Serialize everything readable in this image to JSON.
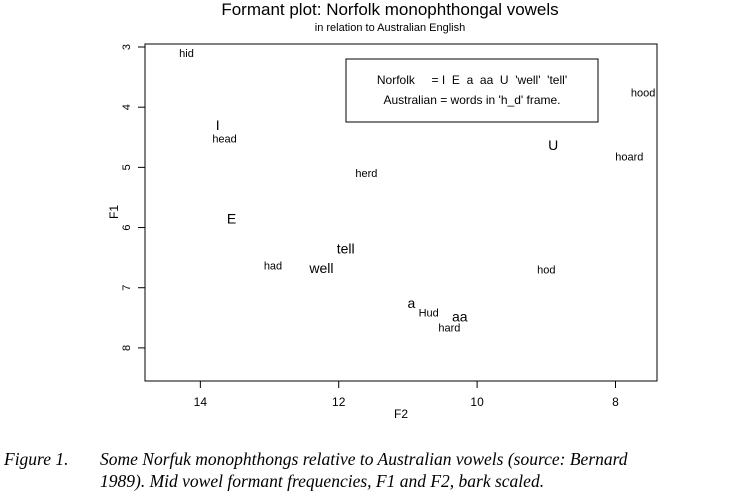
{
  "chart_data": {
    "type": "scatter",
    "title": "Formant plot: Norfolk monophthongal vowels",
    "subtitle": "in relation to Australian English",
    "xlabel": "F2",
    "ylabel": "F1",
    "xlim": [
      14.8,
      7.4
    ],
    "ylim": [
      8.55,
      2.95
    ],
    "x_ticks": [
      "14",
      "12",
      "10",
      "8"
    ],
    "y_ticks": [
      "3",
      "4",
      "5",
      "6",
      "7",
      "8"
    ],
    "legend": {
      "position": "top-right",
      "lines": [
        "Norfolk     = I  E  a  aa  U  'well'  'tell'",
        "Australian = words in 'h_d' frame."
      ]
    },
    "series": [
      {
        "points": [
          {
            "label": "I",
            "x": 13.75,
            "y": 4.3
          },
          {
            "label": "E",
            "x": 13.55,
            "y": 5.85
          },
          {
            "label": "tell",
            "x": 11.9,
            "y": 6.35
          },
          {
            "label": "well",
            "x": 12.25,
            "y": 6.67
          },
          {
            "label": "a",
            "x": 10.95,
            "y": 7.25
          },
          {
            "label": "aa",
            "x": 10.25,
            "y": 7.48
          },
          {
            "label": "U",
            "x": 8.9,
            "y": 4.63
          }
        ]
      },
      {
        "points": [
          {
            "label": "hid",
            "x": 14.2,
            "y": 3.12
          },
          {
            "label": "head",
            "x": 13.65,
            "y": 4.54
          },
          {
            "label": "herd",
            "x": 11.6,
            "y": 5.11
          },
          {
            "label": "had",
            "x": 12.95,
            "y": 6.65
          },
          {
            "label": "Hud",
            "x": 10.7,
            "y": 7.43
          },
          {
            "label": "hard",
            "x": 10.4,
            "y": 7.68
          },
          {
            "label": "hod",
            "x": 9.0,
            "y": 6.71
          },
          {
            "label": "hoard",
            "x": 7.8,
            "y": 4.84
          },
          {
            "label": "hood",
            "x": 7.6,
            "y": 3.77
          }
        ]
      }
    ]
  },
  "caption": {
    "label": "Figure 1.",
    "line1": "Some Norfuk monophthongs relative to Australian vowels (source: Bernard",
    "line2": "1989). Mid vowel formant frequencies, F1 and F2, bark scaled."
  }
}
